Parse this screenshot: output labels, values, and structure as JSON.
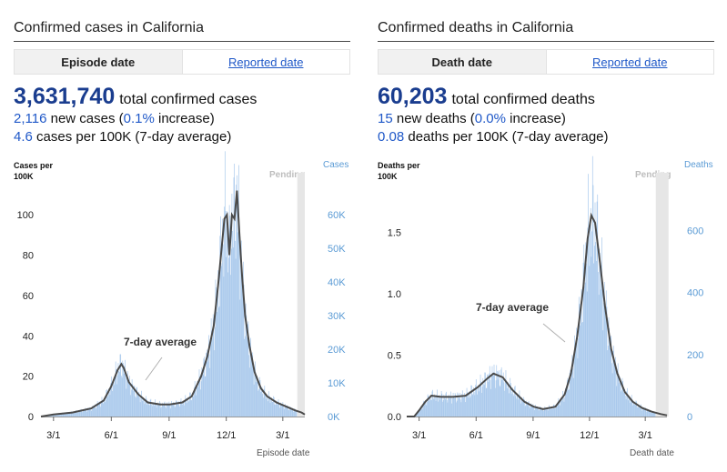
{
  "panels": [
    {
      "title": "Confirmed cases in California",
      "tab_active": "Episode date",
      "tab_link": "Reported date",
      "big_number": "3,631,740",
      "big_text": "total confirmed cases",
      "new_count": "2,116",
      "new_text_1": " new cases (",
      "new_pct": "0.1%",
      "new_text_2": " increase)",
      "per100k_value": "4.6",
      "per100k_text": " cases per 100K (7-day average)",
      "left_axis_label": "Cases per 100K",
      "right_axis_label": "Cases",
      "pending_label": "Pending",
      "avg_annotation": "7-day average",
      "x_axis_label": "Episode date"
    },
    {
      "title": "Confirmed deaths in California",
      "tab_active": "Death date",
      "tab_link": "Reported date",
      "big_number": "60,203",
      "big_text": "total confirmed deaths",
      "new_count": "15",
      "new_text_1": " new deaths (",
      "new_pct": "0.0%",
      "new_text_2": " increase)",
      "per100k_value": "0.08",
      "per100k_text": " deaths per 100K (7-day average)",
      "left_axis_label": "Deaths per 100K",
      "right_axis_label": "Deaths",
      "pending_label": "Pending",
      "avg_annotation": "7-day average",
      "x_axis_label": "Death date"
    }
  ],
  "chart_data": [
    {
      "type": "bar",
      "x_ticks": [
        "3/1",
        "6/1",
        "9/1",
        "12/1",
        "3/1"
      ],
      "left_ticks": [
        "0",
        "20",
        "40",
        "60",
        "80",
        "100"
      ],
      "left_ylim": [
        0,
        110
      ],
      "right_ticks": [
        "0K",
        "10K",
        "20K",
        "30K",
        "40K",
        "50K",
        "60K"
      ],
      "right_ylim": [
        0,
        66000
      ],
      "x_range": [
        0,
        420
      ],
      "x_tick_days": [
        20,
        112,
        204,
        295,
        385
      ],
      "pending_days": [
        408,
        420
      ],
      "series": [
        {
          "name": "7-day average",
          "unit": "cases per 100K",
          "points": [
            [
              0,
              0
            ],
            [
              20,
              1
            ],
            [
              50,
              2
            ],
            [
              80,
              4
            ],
            [
              100,
              8
            ],
            [
              112,
              15
            ],
            [
              122,
              23
            ],
            [
              128,
              26
            ],
            [
              132,
              24
            ],
            [
              140,
              17
            ],
            [
              155,
              11
            ],
            [
              170,
              7
            ],
            [
              190,
              6
            ],
            [
              205,
              6
            ],
            [
              225,
              7
            ],
            [
              240,
              10
            ],
            [
              255,
              20
            ],
            [
              265,
              30
            ],
            [
              275,
              45
            ],
            [
              282,
              65
            ],
            [
              288,
              85
            ],
            [
              292,
              98
            ],
            [
              296,
              100
            ],
            [
              300,
              80
            ],
            [
              304,
              100
            ],
            [
              308,
              98
            ],
            [
              312,
              112
            ],
            [
              316,
              90
            ],
            [
              320,
              70
            ],
            [
              325,
              50
            ],
            [
              332,
              35
            ],
            [
              340,
              22
            ],
            [
              350,
              14
            ],
            [
              360,
              10
            ],
            [
              375,
              7
            ],
            [
              390,
              5
            ],
            [
              405,
              3
            ],
            [
              415,
              2
            ],
            [
              420,
              1
            ]
          ]
        }
      ]
    },
    {
      "type": "bar",
      "x_ticks": [
        "3/1",
        "6/1",
        "9/1",
        "12/1",
        "3/1"
      ],
      "left_ticks": [
        "0.0",
        "0.5",
        "1.0",
        "1.5"
      ],
      "left_ylim": [
        0,
        1.72
      ],
      "right_ticks": [
        "0",
        "200",
        "400",
        "600"
      ],
      "right_ylim": [
        0,
        680
      ],
      "x_range": [
        0,
        420
      ],
      "x_tick_days": [
        20,
        112,
        204,
        295,
        385
      ],
      "pending_days": [
        402,
        420
      ],
      "series": [
        {
          "name": "7-day average",
          "unit": "deaths per 100K",
          "points": [
            [
              0,
              0
            ],
            [
              12,
              0
            ],
            [
              20,
              0.05
            ],
            [
              30,
              0.12
            ],
            [
              40,
              0.17
            ],
            [
              55,
              0.16
            ],
            [
              75,
              0.16
            ],
            [
              95,
              0.17
            ],
            [
              115,
              0.24
            ],
            [
              130,
              0.31
            ],
            [
              140,
              0.35
            ],
            [
              155,
              0.32
            ],
            [
              170,
              0.22
            ],
            [
              190,
              0.12
            ],
            [
              205,
              0.08
            ],
            [
              220,
              0.06
            ],
            [
              240,
              0.08
            ],
            [
              255,
              0.18
            ],
            [
              265,
              0.35
            ],
            [
              275,
              0.65
            ],
            [
              285,
              1.05
            ],
            [
              292,
              1.45
            ],
            [
              298,
              1.64
            ],
            [
              304,
              1.58
            ],
            [
              312,
              1.25
            ],
            [
              320,
              0.9
            ],
            [
              330,
              0.55
            ],
            [
              340,
              0.35
            ],
            [
              352,
              0.2
            ],
            [
              365,
              0.12
            ],
            [
              380,
              0.07
            ],
            [
              395,
              0.04
            ],
            [
              410,
              0.02
            ],
            [
              420,
              0.01
            ]
          ]
        }
      ]
    }
  ]
}
